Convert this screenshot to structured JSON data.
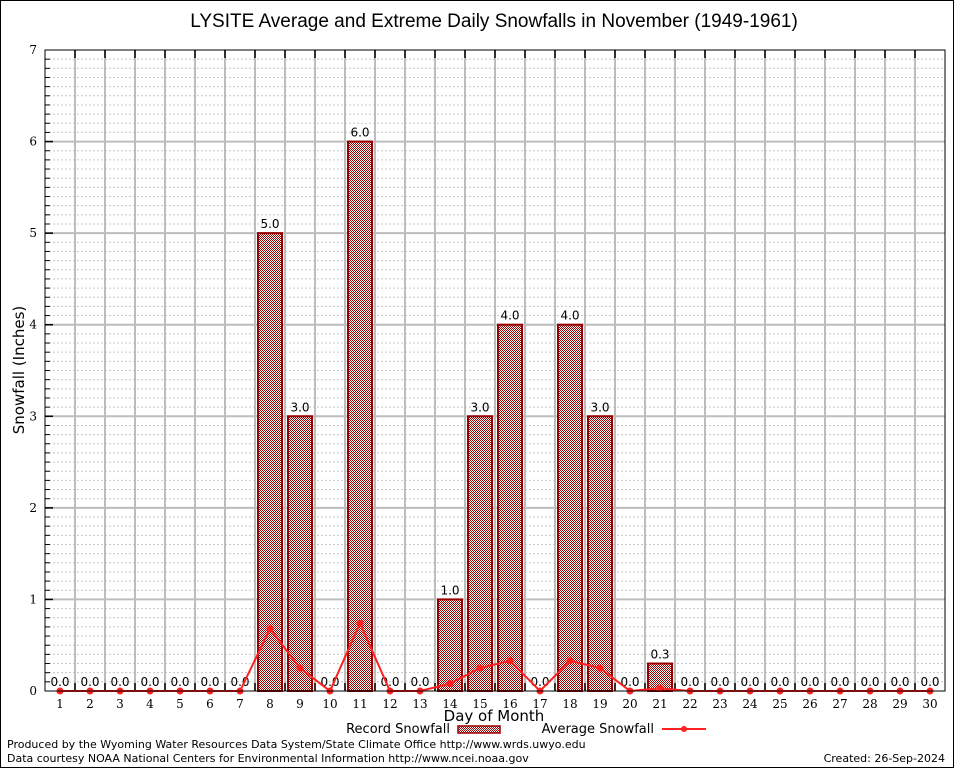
{
  "chart_data": {
    "type": "bar",
    "title": "LYSITE Average and Extreme Daily Snowfalls in November (1949-1961)",
    "xlabel": "Day of Month",
    "ylabel": "Snowfall (Inches)",
    "ylim": [
      0,
      7
    ],
    "yticks": [
      0,
      1,
      2,
      3,
      4,
      5,
      6,
      7
    ],
    "grid": true,
    "categories": [
      "1",
      "2",
      "3",
      "4",
      "5",
      "6",
      "7",
      "8",
      "9",
      "10",
      "11",
      "12",
      "13",
      "14",
      "15",
      "16",
      "17",
      "18",
      "19",
      "20",
      "21",
      "22",
      "23",
      "24",
      "25",
      "26",
      "27",
      "28",
      "29",
      "30"
    ],
    "series": [
      {
        "name": "Record Snowfall",
        "type": "bar",
        "color": "#990000",
        "values": [
          0,
          0,
          0,
          0,
          0,
          0,
          0,
          5.0,
          3.0,
          0,
          6.0,
          0,
          0,
          1.0,
          3.0,
          4.0,
          0,
          4.0,
          3.0,
          0,
          0.3,
          0,
          0,
          0,
          0,
          0,
          0,
          0,
          0,
          0
        ],
        "labels": [
          "0.0",
          "0.0",
          "0.0",
          "0.0",
          "0.0",
          "0.0",
          "0.0",
          "5.0",
          "3.0",
          "0.0",
          "6.0",
          "0.0",
          "0.0",
          "1.0",
          "3.0",
          "4.0",
          "0.0",
          "4.0",
          "3.0",
          "0.0",
          "0.3",
          "0.0",
          "0.0",
          "0.0",
          "0.0",
          "0.0",
          "0.0",
          "0.0",
          "0.0",
          "0.0"
        ]
      },
      {
        "name": "Average Snowfall",
        "type": "line",
        "color": "#ff2020",
        "values": [
          0,
          0,
          0,
          0,
          0,
          0,
          0,
          0.68,
          0.25,
          0,
          0.74,
          0,
          0,
          0.08,
          0.25,
          0.33,
          0,
          0.33,
          0.25,
          0,
          0.03,
          0,
          0,
          0,
          0,
          0,
          0,
          0,
          0,
          0
        ]
      }
    ],
    "legend": {
      "position": "bottom-center",
      "entries": [
        "Record Snowfall",
        "Average Snowfall"
      ]
    }
  },
  "footer": {
    "produced_by": "Produced by the Wyoming Water Resources Data System/State Climate Office http://www.wrds.uwyo.edu",
    "data_courtesy": "Data courtesy NOAA National Centers for Environmental Information http://www.ncei.noaa.gov",
    "created": "Created: 26-Sep-2024"
  }
}
